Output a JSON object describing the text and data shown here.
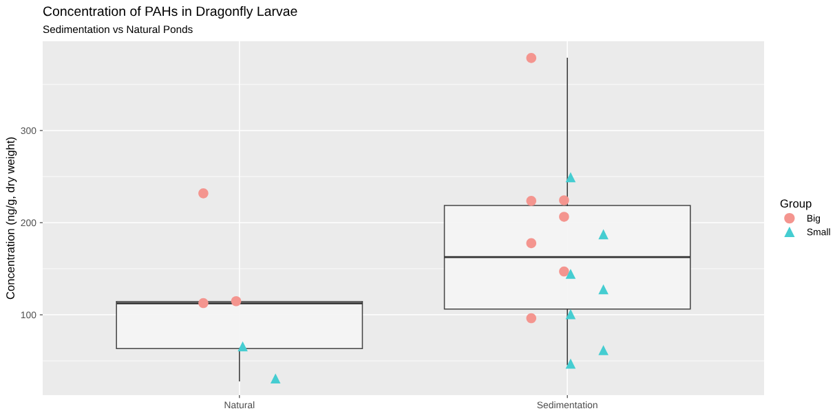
{
  "chart_data": {
    "type": "box",
    "title": "Concentration of PAHs in Dragonfly Larvae",
    "subtitle": "Sedimentation vs Natural Ponds",
    "ylabel": "Concentration (ng/g, dry weight)",
    "legend_title": "Group",
    "categories": [
      "Natural",
      "Sedimentation"
    ],
    "boxes": [
      {
        "low": 28.3,
        "q1": 63.3,
        "median": 112.5,
        "q3": 114.5,
        "high": 114.5
      },
      {
        "low": 45.8,
        "q1": 106.2,
        "median": 162.7,
        "q3": 218.6,
        "high": 378.4
      }
    ],
    "series": [
      {
        "name": "Big",
        "type": "scatter",
        "marker": "circle",
        "color": "#f4958f",
        "x": [
          "Natural",
          "Natural",
          "Natural",
          "Sedimentation",
          "Sedimentation",
          "Sedimentation",
          "Sedimentation",
          "Sedimentation",
          "Sedimentation",
          "Sedimentation"
        ],
        "values": [
          231.8,
          114.8,
          112.7,
          378.7,
          224.3,
          223.6,
          206.4,
          177.7,
          147,
          96.3
        ]
      },
      {
        "name": "Small",
        "type": "scatter",
        "marker": "triangle",
        "color": "#45cdd1",
        "x": [
          "Natural",
          "Natural",
          "Sedimentation",
          "Sedimentation",
          "Sedimentation",
          "Sedimentation",
          "Sedimentation",
          "Sedimentation",
          "Sedimentation"
        ],
        "values": [
          65.8,
          30.9,
          249.3,
          187.4,
          144.4,
          127.7,
          100.7,
          61.6,
          47
        ]
      }
    ],
    "ylim": [
      12.8,
      396.9
    ],
    "yticks": [
      {
        "value": 50,
        "label": null
      },
      100,
      {
        "value": 150,
        "label": null
      },
      200,
      {
        "value": 250,
        "label": null
      },
      300,
      {
        "value": 350,
        "label": null
      }
    ],
    "grid": true,
    "legend": "right"
  }
}
